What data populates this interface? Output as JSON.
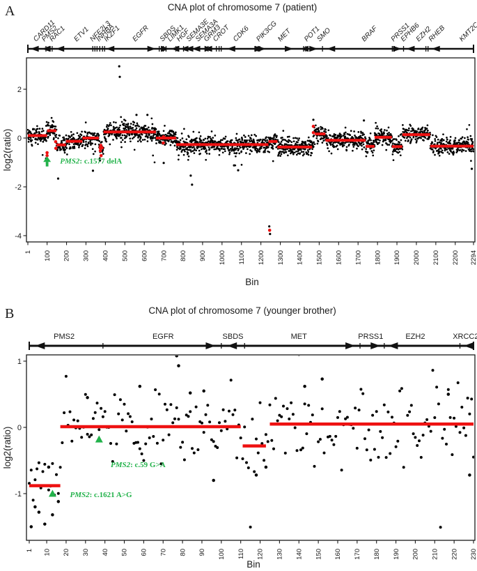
{
  "colors": {
    "point": "#000000",
    "segment": "#ee1111",
    "annotation": "#22b24a",
    "track": "#111111"
  },
  "figure": {
    "panel_a": {
      "letter": "A"
    },
    "panel_b": {
      "letter": "B"
    }
  },
  "chart_data": [
    {
      "id": "a",
      "type": "scatter",
      "title": "CNA plot of chromosome 7 (patient)",
      "xlabel": "Bin",
      "ylabel": "log2(ratio)",
      "xlim": [
        1,
        2294
      ],
      "ylim": [
        -4.26,
        3.29
      ],
      "xticks": [
        1,
        100,
        200,
        300,
        400,
        500,
        600,
        700,
        800,
        900,
        1000,
        1100,
        1200,
        1300,
        1400,
        1500,
        1600,
        1700,
        1800,
        1900,
        2000,
        2100,
        2200,
        2294
      ],
      "yticks": [
        2,
        0,
        -2,
        -4
      ],
      "grid": false,
      "points": {
        "count": 2294,
        "noise_sd": 0.17,
        "radius": 1.35,
        "seed": 12,
        "tail_prob": 0.035,
        "tail_mult": 2.4
      },
      "segments": [
        [
          1,
          100,
          0.1
        ],
        [
          100,
          148,
          0.3
        ],
        [
          148,
          197,
          -0.28
        ],
        [
          197,
          282,
          -0.13
        ],
        [
          282,
          366,
          0.0
        ],
        [
          366,
          390,
          -0.4
        ],
        [
          390,
          660,
          0.25
        ],
        [
          660,
          764,
          0.0
        ],
        [
          764,
          1239,
          -0.27
        ],
        [
          1239,
          1285,
          -0.14
        ],
        [
          1285,
          1464,
          -0.37
        ],
        [
          1478,
          1532,
          0.17
        ],
        [
          1532,
          1739,
          -0.09
        ],
        [
          1739,
          1785,
          -0.34
        ],
        [
          1785,
          1874,
          0.03
        ],
        [
          1874,
          1928,
          -0.35
        ],
        [
          1928,
          2071,
          0.14
        ],
        [
          2071,
          2294,
          -0.33
        ]
      ],
      "outliers": [
        [
          471,
          2.94
        ],
        [
          474,
          2.51
        ],
        [
          157,
          -1.66
        ],
        [
          336,
          -1.34
        ],
        [
          839,
          -1.54
        ],
        [
          846,
          -1.91
        ],
        [
          1243,
          -3.62
        ],
        [
          1247,
          -3.93
        ],
        [
          1062,
          -1.12
        ],
        [
          1083,
          -1.32
        ],
        [
          2285,
          -1.26
        ],
        [
          700,
          -1.02
        ],
        [
          372,
          -0.92
        ],
        [
          95,
          -0.84
        ],
        [
          99,
          -1.02
        ],
        [
          560,
          0.95
        ],
        [
          616,
          0.95
        ],
        [
          1470,
          0.75
        ],
        [
          1730,
          0.72
        ]
      ],
      "red_points": [
        [
          100,
          -0.72
        ],
        [
          100,
          -0.6
        ],
        [
          1245,
          -3.78
        ],
        [
          374,
          -0.52
        ],
        [
          376,
          -0.3
        ],
        [
          378,
          -0.72
        ],
        [
          698,
          -0.2
        ],
        [
          699,
          0.05
        ],
        [
          1470,
          0.48
        ],
        [
          1470,
          0.22
        ],
        [
          144,
          -0.15
        ],
        [
          145,
          -0.42
        ]
      ],
      "annotations": [
        {
          "marker": "arrow",
          "bin": 100,
          "value": -0.75,
          "gene": "PMS2",
          "rest": ": c.1577 delA",
          "text_bin": 167,
          "text_value": -1.04
        }
      ],
      "gene_track": {
        "genes": [
          [
            "CARD11",
            43
          ],
          [
            "PMS2",
            86
          ],
          [
            "RAC1",
            126
          ],
          [
            "ETV1",
            252
          ],
          [
            "NFE2L3",
            334
          ],
          [
            "INHBA",
            367
          ],
          [
            "IKZF1",
            406
          ],
          [
            "EGFR",
            553
          ],
          [
            "SBDS",
            694
          ],
          [
            "LIMK1",
            733
          ],
          [
            "HGF",
            780
          ],
          [
            "SEMA3E",
            830
          ],
          [
            "SEMA3A",
            877
          ],
          [
            "GRM3",
            920
          ],
          [
            "CROT",
            967
          ],
          [
            "CDK6",
            1071
          ],
          [
            "PIK3CG",
            1190
          ],
          [
            "MET",
            1301
          ],
          [
            "POT1",
            1437
          ],
          [
            "SMO",
            1502
          ],
          [
            "BRAF",
            1732
          ],
          [
            "PRSS1",
            1883
          ],
          [
            "EPHB6",
            1933
          ],
          [
            "EZH2",
            2012
          ],
          [
            "RHEB",
            2077
          ],
          [
            "KMT2C",
            2235
          ]
        ],
        "bars": [
          1,
          2294
        ],
        "ticks": [
          94,
          116,
          126,
          335,
          346,
          357,
          371,
          385,
          396,
          677,
          688,
          698,
          712,
          763,
          773,
          802,
          928,
          971,
          985,
          996,
          1169,
          1194,
          1420,
          1431,
          1517,
          1876,
          1887,
          1934,
          2049,
          2060
        ],
        "left_arrows": [
          14,
          73,
          145,
          403,
          737,
          784,
          809,
          845,
          906,
          1025,
          1402,
          1539,
          1948,
          2078
        ],
        "right_arrows": [
          659,
          730,
          953,
          1212,
          1226,
          1366,
          1492,
          1923
        ]
      }
    },
    {
      "id": "b",
      "type": "scatter",
      "title": "CNA plot of chromosome 7 (younger brother)",
      "xlabel": "Bin",
      "ylabel": "log2(ratio)",
      "xlim": [
        1,
        230
      ],
      "ylim": [
        -1.7,
        1.1
      ],
      "xticks": [
        1,
        10,
        20,
        30,
        40,
        50,
        60,
        70,
        80,
        90,
        100,
        110,
        120,
        130,
        140,
        150,
        160,
        170,
        180,
        190,
        200,
        210,
        220,
        230
      ],
      "yticks": [
        1,
        0,
        -1
      ],
      "grid": false,
      "points": {
        "count": 230,
        "noise_sd": 0.28,
        "radius": 2.0,
        "seed": 5,
        "tail_prob": 0.06,
        "tail_mult": 1.7
      },
      "segments": [
        [
          1,
          17,
          -0.88
        ],
        [
          17,
          110,
          0.01
        ],
        [
          111,
          123,
          -0.28
        ],
        [
          125,
          230,
          0.05
        ]
      ],
      "outliers": [
        [
          77,
          1.08
        ],
        [
          78,
          0.93
        ],
        [
          58,
          0.62
        ],
        [
          91,
          0.55
        ],
        [
          152,
          0.73
        ],
        [
          217,
          0.5
        ],
        [
          2,
          -1.5
        ],
        [
          4,
          -1.2
        ],
        [
          6,
          -1.28
        ],
        [
          9,
          -1.46
        ],
        [
          13,
          -1.32
        ],
        [
          16,
          -1.12
        ],
        [
          11,
          -0.6
        ],
        [
          31,
          0.45
        ],
        [
          96,
          -0.8
        ],
        [
          118,
          -0.72
        ],
        [
          123,
          -0.6
        ],
        [
          228,
          -0.72
        ],
        [
          84,
          0.52
        ],
        [
          143,
          0.62
        ]
      ],
      "red_points": [],
      "annotations": [
        {
          "marker": "triangle",
          "bin": 37,
          "value": -0.18,
          "gene": "PMS2",
          "rest": ": c.59 G>A",
          "text_bin": 43,
          "text_value": -0.6
        },
        {
          "marker": "triangle",
          "bin": 13,
          "value": -1.0,
          "gene": "PMS2",
          "rest": ": c.1621 A>G",
          "text_bin": 22,
          "text_value": -1.05
        }
      ],
      "gene_track": {
        "genes": [
          [
            "PMS2",
            19
          ],
          [
            "EGFR",
            70
          ],
          [
            "SBDS",
            106
          ],
          [
            "MET",
            140
          ],
          [
            "PRSS1",
            177
          ],
          [
            "EZH2",
            200
          ],
          [
            "XRCC2",
            226
          ]
        ],
        "bars": [
          1,
          230
        ],
        "ticks": [
          39,
          100,
          112,
          171.5,
          184,
          223
        ],
        "left_arrows": [
          4,
          103,
          186,
          225
        ],
        "right_arrows": [
          97,
          169,
          182
        ]
      }
    }
  ]
}
